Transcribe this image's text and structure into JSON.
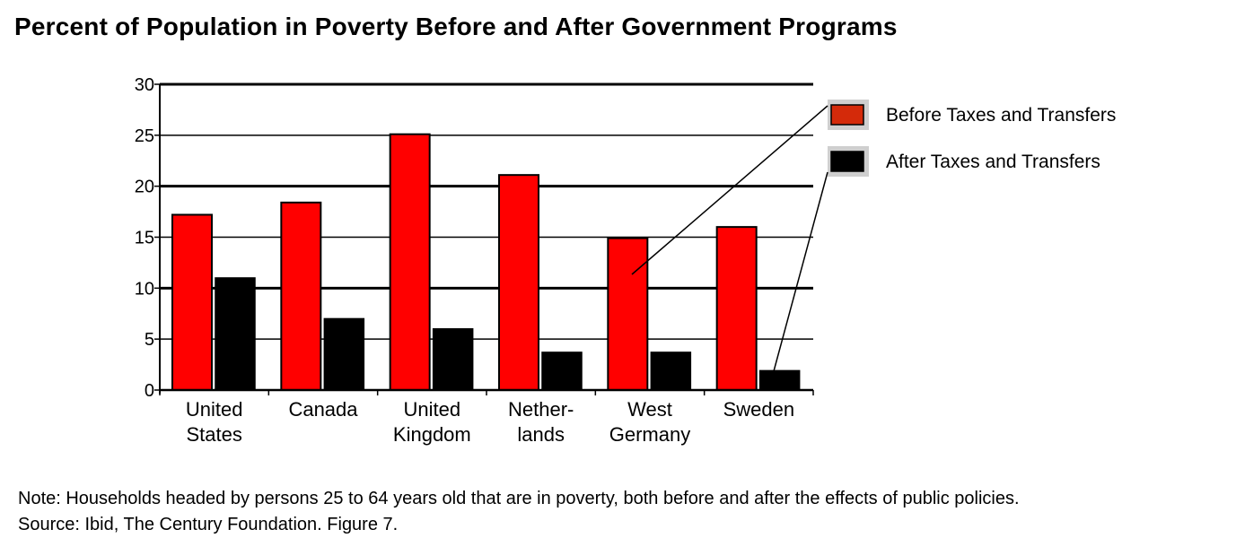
{
  "title": "Percent of Population in Poverty Before and After Government Programs",
  "note": {
    "line1": "Note: Households headed by persons 25 to 64 years old that are in poverty, both before and after the effects of public policies.",
    "line2": "Source: Ibid, The Century Foundation. Figure 7."
  },
  "chart_data": {
    "type": "bar",
    "title": "Percent of Population in Poverty Before and After Government Programs",
    "xlabel": "",
    "ylabel": "",
    "ylim": [
      0,
      30
    ],
    "yticks": [
      0,
      5,
      10,
      15,
      20,
      25,
      30
    ],
    "grid": true,
    "legend_position": "right",
    "categories": [
      [
        "United",
        "States"
      ],
      [
        "Canada"
      ],
      [
        "United",
        "Kingdom"
      ],
      [
        "Nether-",
        "lands"
      ],
      [
        "West",
        "Germany"
      ],
      [
        "Sweden"
      ]
    ],
    "series": [
      {
        "name": "Before Taxes and Transfers",
        "color": "#ff0000",
        "values": [
          17.2,
          18.4,
          25.1,
          21.1,
          14.9,
          16.0
        ]
      },
      {
        "name": "After Taxes and Transfers",
        "color": "#000000",
        "values": [
          11.0,
          7.0,
          6.0,
          3.7,
          3.7,
          1.9
        ]
      }
    ]
  }
}
